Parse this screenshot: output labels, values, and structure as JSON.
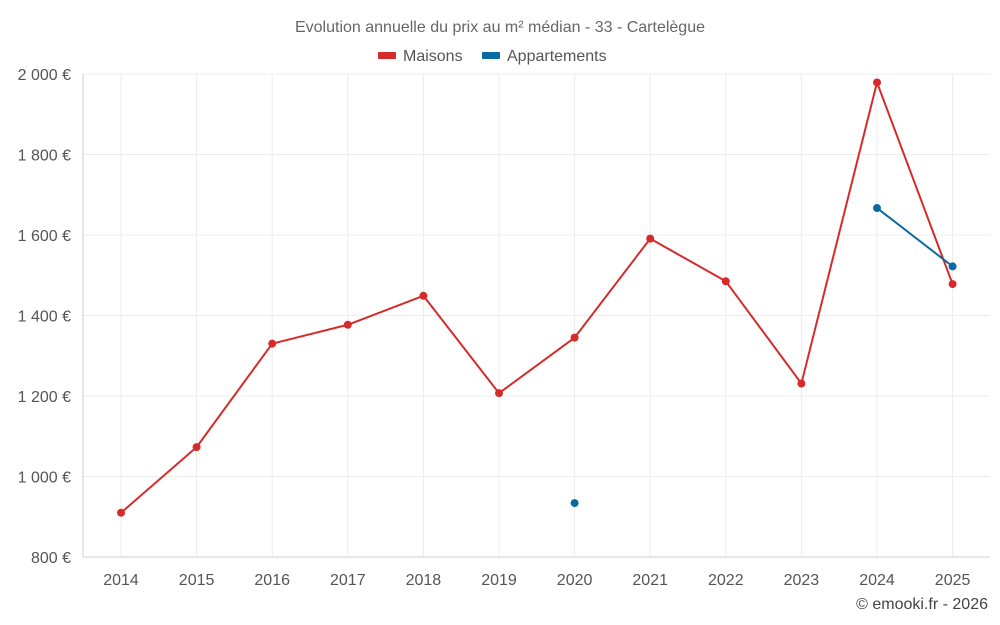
{
  "chart_data": {
    "type": "line",
    "title": "Evolution annuelle du prix au m² médian - 33 - Cartelègue",
    "categories": [
      "2014",
      "2015",
      "2016",
      "2017",
      "2018",
      "2019",
      "2020",
      "2021",
      "2022",
      "2023",
      "2024",
      "2025"
    ],
    "y_ticks": [
      800,
      1000,
      1200,
      1400,
      1600,
      1800,
      2000
    ],
    "y_tick_labels": [
      "800 €",
      "1 000 €",
      "1 200 €",
      "1 400 €",
      "1 600 €",
      "1 800 €",
      "2 000 €"
    ],
    "ylim": [
      800,
      2000
    ],
    "xlabel": "",
    "ylabel": "",
    "grid": true,
    "legend_position": "top-center",
    "series": [
      {
        "name": "Maisons",
        "color": "#d62b2b",
        "values": [
          910,
          1073,
          1330,
          1377,
          1449,
          1207,
          1345,
          1591,
          1485,
          1231,
          1979,
          1478
        ]
      },
      {
        "name": "Appartements",
        "color": "#0a6aa1",
        "values": [
          null,
          null,
          null,
          null,
          null,
          null,
          934,
          null,
          null,
          null,
          1667,
          1522
        ]
      }
    ],
    "credit": "© emooki.fr - 2026"
  }
}
